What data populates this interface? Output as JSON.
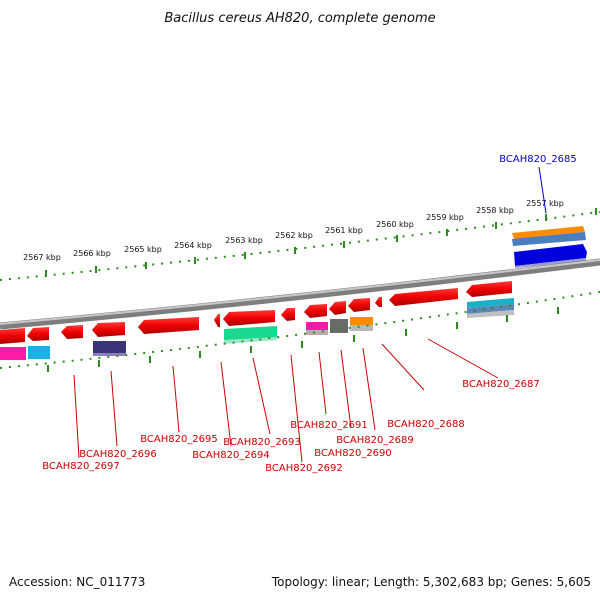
{
  "title": "Bacillus cereus AH820, complete genome",
  "accession": "Accession: NC_011773",
  "summary": "Topology: linear; Length: 5,302,683 bp; Genes: 5,605",
  "kbp_labels": [
    "2567 kbp",
    "2566 kbp",
    "2565 kbp",
    "2564 kbp",
    "2563 kbp",
    "2562 kbp",
    "2561 kbp",
    "2560 kbp",
    "2559 kbp",
    "2558 kbp",
    "2557 kbp"
  ],
  "gene_labels": [
    {
      "id": "BCAH820_2685",
      "color": "#0000cc"
    },
    {
      "id": "BCAH820_2687",
      "color": "#cc0000"
    },
    {
      "id": "BCAH820_2688",
      "color": "#cc0000"
    },
    {
      "id": "BCAH820_2689",
      "color": "#cc0000"
    },
    {
      "id": "BCAH820_2690",
      "color": "#cc0000"
    },
    {
      "id": "BCAH820_2691",
      "color": "#cc0000"
    },
    {
      "id": "BCAH820_2692",
      "color": "#cc0000"
    },
    {
      "id": "BCAH820_2693",
      "color": "#cc0000"
    },
    {
      "id": "BCAH820_2694",
      "color": "#cc0000"
    },
    {
      "id": "BCAH820_2695",
      "color": "#cc0000"
    },
    {
      "id": "BCAH820_2696",
      "color": "#cc0000"
    },
    {
      "id": "BCAH820_2697",
      "color": "#cc0000"
    }
  ],
  "colors": {
    "gene_red": "#ee0000",
    "backbone": "#8c8c8c",
    "tick_green": "#2e8b20",
    "blue_gene": "#0000dd",
    "orange_feature": "#ff8c00"
  }
}
